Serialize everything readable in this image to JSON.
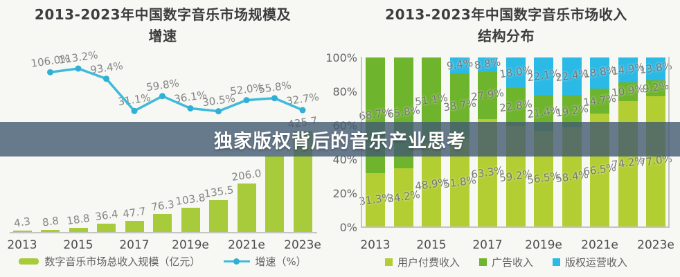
{
  "banner": {
    "text": "独家版权背后的音乐产业思考",
    "overlay_color": "rgba(66,90,114,0.8)",
    "text_color": "#ffffff"
  },
  "chart_data": [
    {
      "type": "bar",
      "title": "2013-2023年中国数字音乐市场规模及增速",
      "title_line1": "2013-2023年中国数字音乐市场规模及",
      "title_line2": "增速",
      "categories": [
        "2013",
        "2014",
        "2015",
        "2016",
        "2017",
        "2018",
        "2019e",
        "2020e",
        "2021e",
        "2022e",
        "2023e"
      ],
      "x_tick_labels": [
        "2013",
        "2015",
        "2017",
        "2019e",
        "2021e",
        "2023e"
      ],
      "bars": {
        "name": "数字音乐市场总收入规模（亿元）",
        "color": "#a7cb3b",
        "values": [
          4.3,
          8.8,
          18.8,
          36.4,
          47.7,
          76.3,
          103.8,
          135.5,
          206.0,
          321.0,
          425.7
        ],
        "labels": [
          "4.3",
          "8.8",
          "18.8",
          "36.4",
          "47.7",
          "76.3",
          "103.8",
          "135.5",
          "206.0",
          "",
          "425.7"
        ]
      },
      "line": {
        "name": "增速（%）",
        "color": "#3dbbd9",
        "dot_color": "#2fb0d4",
        "values": [
          null,
          106.0,
          113.2,
          93.4,
          31.1,
          59.8,
          36.1,
          30.5,
          52.0,
          55.8,
          32.7
        ],
        "labels": [
          "",
          "106.0%",
          "113.2%",
          "93.4%",
          "31.1%",
          "59.8%",
          "36.1%",
          "30.5%",
          "52.0%",
          "55.8%",
          "32.7%"
        ]
      }
    },
    {
      "type": "bar",
      "subtype": "stacked-100",
      "title": "2013-2023年中国数字音乐市场收入结构分布",
      "title_line1": "2013-2023年中国数字音乐市场收入",
      "title_line2": "结构分布",
      "categories": [
        "2013",
        "2014",
        "2015",
        "2016",
        "2017",
        "2018",
        "2019e",
        "2020e",
        "2021e",
        "2022e",
        "2023e"
      ],
      "x_tick_labels": [
        "2013",
        "2015",
        "2017",
        "2019e",
        "2021e",
        "2023e"
      ],
      "y_tick_labels": [
        "100%",
        "80%",
        "60%",
        "40%",
        "20%",
        "0%"
      ],
      "ylim": [
        0,
        100
      ],
      "series": [
        {
          "name": "用户付费收入",
          "color": "#b3ce33",
          "values": [
            31.3,
            34.2,
            48.9,
            51.8,
            63.3,
            59.2,
            56.5,
            58.4,
            66.5,
            74.2,
            77.0
          ],
          "labels": [
            "31.3%",
            "34.2%",
            "48.9%",
            "51.8%",
            "63.3%",
            "59.2%",
            "56.5%",
            "58.4%",
            "66.5%",
            "74.2%",
            "77.0%"
          ]
        },
        {
          "name": "广告收入",
          "color": "#6fb42d",
          "values": [
            68.7,
            65.8,
            51.1,
            38.7,
            27.9,
            22.8,
            21.4,
            19.2,
            14.7,
            10.9,
            9.2
          ],
          "labels": [
            "68.7%",
            "65.8%",
            "51.1%",
            "38.7%",
            "27.9%",
            "22.8%",
            "21.4%",
            "19.2%",
            "14.7%",
            "10.9%",
            "9.2%"
          ]
        },
        {
          "name": "版权运营收入",
          "color": "#2bbae6",
          "values": [
            0,
            0,
            0,
            9.4,
            8.8,
            18.0,
            22.1,
            22.4,
            18.8,
            14.9,
            13.8
          ],
          "labels": [
            "",
            "",
            "",
            "9.4%",
            "8.8%",
            "18.0%",
            "22.1%",
            "22.4%",
            "18.8%",
            "14.9%",
            "13.8%"
          ]
        }
      ]
    }
  ]
}
